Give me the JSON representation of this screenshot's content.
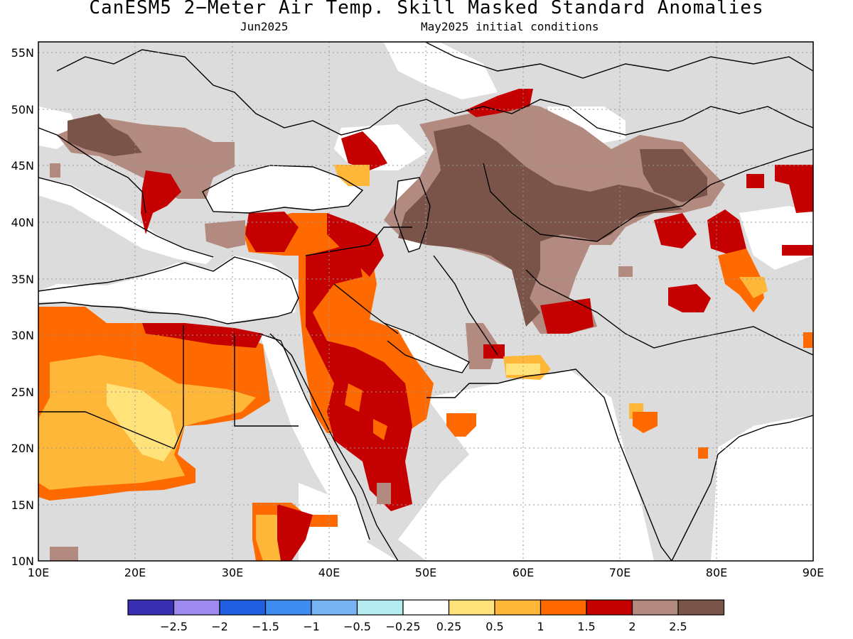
{
  "title": "CanESM5 2−Meter Air Temp. Skill Masked Standard Anomalies",
  "subtitle_left": "Jun2025",
  "subtitle_right": "May2025 initial conditions",
  "map": {
    "lon_range": [
      10,
      90
    ],
    "lat_range": [
      10,
      56
    ],
    "lat_ticks": [
      "55N",
      "50N",
      "45N",
      "40N",
      "35N",
      "30N",
      "25N",
      "20N",
      "15N",
      "10N"
    ],
    "lon_ticks": [
      "10E",
      "20E",
      "30E",
      "40E",
      "50E",
      "60E",
      "70E",
      "80E",
      "90E"
    ],
    "grid": "dotted",
    "masked_color": "#dcdcdc",
    "ocean_color": "#ffffff"
  },
  "colorbar": {
    "colors": [
      "#3a2fb3",
      "#9f8bf0",
      "#2060e0",
      "#3f8cf0",
      "#76b4f4",
      "#b4ecf0",
      "#ffffff",
      "#ffe27a",
      "#ffb73a",
      "#ff6a00",
      "#c40000",
      "#b38a80",
      "#7a5448"
    ],
    "labels": [
      "−2.5",
      "−2",
      "−1.5",
      "−1",
      "−0.5",
      "−0.25",
      "0.25",
      "0.5",
      "1",
      "1.5",
      "2",
      "2.5"
    ]
  },
  "anomaly_colors": {
    "light_yellow": "#ffe27a",
    "orange_yellow": "#ffb73a",
    "orange": "#ff6a00",
    "red": "#c40000",
    "light_brown": "#b38a80",
    "dark_brown": "#7a5448"
  }
}
